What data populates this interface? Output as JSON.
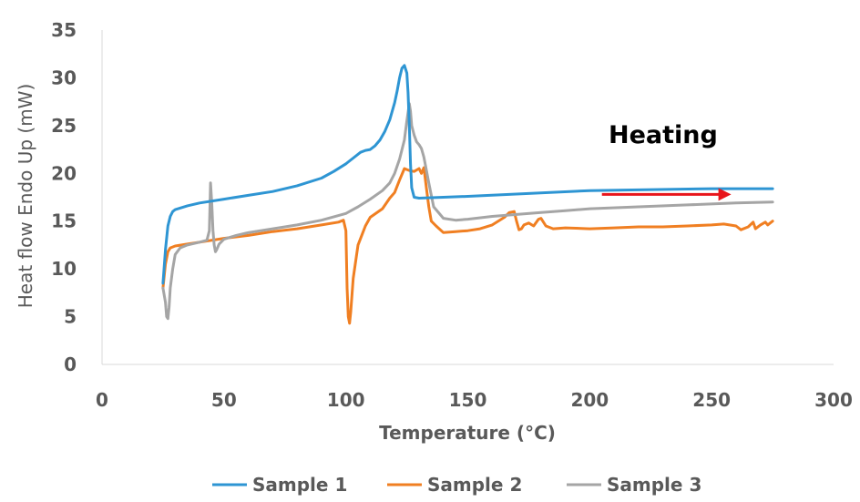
{
  "chart_data": {
    "type": "line",
    "xlabel": "Temperature (°C)",
    "ylabel": "Heat flow Endo Up  (mW)",
    "xlim": [
      0,
      300
    ],
    "ylim": [
      0,
      35
    ],
    "xticks": [
      0,
      50,
      100,
      150,
      200,
      250,
      300
    ],
    "yticks": [
      0,
      5,
      10,
      15,
      20,
      25,
      30,
      35
    ],
    "grid": false,
    "legend_position": "bottom",
    "annotation": {
      "text": "Heating",
      "arrow_from": [
        205,
        17.8
      ],
      "arrow_to": [
        258,
        17.8
      ],
      "arrow_color": "#e8151b"
    },
    "series": [
      {
        "name": "Sample 1",
        "color": "#2e95d3",
        "x": [
          25,
          26,
          27,
          28,
          29,
          30,
          35,
          40,
          50,
          60,
          70,
          80,
          90,
          95,
          100,
          103,
          106,
          108,
          110,
          112,
          114,
          116,
          118,
          120,
          121,
          122,
          123,
          124,
          125,
          125.5,
          126,
          126.5,
          127,
          128,
          130,
          140,
          150,
          200,
          250,
          275
        ],
        "y": [
          8.5,
          12,
          14.5,
          15.5,
          16,
          16.2,
          16.6,
          16.9,
          17.3,
          17.7,
          18.1,
          18.7,
          19.5,
          20.2,
          21.0,
          21.6,
          22.2,
          22.4,
          22.5,
          22.9,
          23.5,
          24.4,
          25.6,
          27.4,
          28.6,
          30.0,
          31.0,
          31.3,
          30.5,
          28.5,
          25.0,
          21.0,
          18.5,
          17.5,
          17.4,
          17.5,
          17.6,
          18.2,
          18.4,
          18.4
        ]
      },
      {
        "name": "Sample 2",
        "color": "#f07f22",
        "x": [
          25,
          26,
          27,
          28,
          30,
          35,
          40,
          50,
          60,
          70,
          80,
          90,
          97,
          99,
          100,
          100.5,
          101,
          101.5,
          102,
          103,
          105,
          108,
          110,
          115,
          118,
          120,
          122,
          124,
          125,
          126,
          128,
          130,
          131,
          132,
          133,
          134,
          135,
          137,
          140,
          145,
          150,
          155,
          160,
          165,
          167,
          169,
          170,
          171,
          172,
          173,
          175,
          177,
          179,
          180,
          182,
          185,
          190,
          200,
          210,
          220,
          230,
          240,
          250,
          255,
          260,
          262,
          265,
          267,
          268,
          270,
          272,
          273,
          275
        ],
        "y": [
          8,
          10.5,
          11.8,
          12.2,
          12.4,
          12.6,
          12.8,
          13.2,
          13.5,
          13.9,
          14.2,
          14.6,
          14.9,
          15.1,
          14.0,
          8.0,
          5.0,
          4.3,
          5.5,
          9.0,
          12.5,
          14.5,
          15.4,
          16.3,
          17.4,
          18.0,
          19.3,
          20.5,
          20.4,
          20.3,
          20.2,
          20.5,
          20.0,
          20.6,
          18.5,
          16.5,
          15.0,
          14.5,
          13.8,
          13.9,
          14.0,
          14.2,
          14.6,
          15.4,
          15.9,
          16.0,
          15.0,
          14.1,
          14.2,
          14.6,
          14.8,
          14.5,
          15.2,
          15.3,
          14.5,
          14.2,
          14.3,
          14.2,
          14.3,
          14.4,
          14.4,
          14.5,
          14.6,
          14.7,
          14.5,
          14.1,
          14.4,
          14.9,
          14.2,
          14.6,
          14.9,
          14.6,
          15.0
        ]
      },
      {
        "name": "Sample 3",
        "color": "#a5a5a5",
        "x": [
          25,
          26,
          26.5,
          27,
          27.5,
          28,
          29,
          30,
          32,
          35,
          40,
          43,
          44,
          44.5,
          45,
          45.5,
          46,
          46.5,
          47,
          48,
          50,
          55,
          60,
          70,
          80,
          90,
          100,
          105,
          110,
          115,
          118,
          120,
          122,
          124,
          125,
          126,
          126.5,
          127,
          128,
          129,
          130,
          131,
          132,
          134,
          136,
          140,
          145,
          150,
          160,
          170,
          180,
          190,
          200,
          220,
          240,
          260,
          275
        ],
        "y": [
          8,
          6.5,
          5,
          4.8,
          6,
          8,
          10,
          11.5,
          12.2,
          12.5,
          12.8,
          13.0,
          14,
          19.0,
          17,
          14,
          12.5,
          11.8,
          12,
          12.6,
          13.1,
          13.5,
          13.8,
          14.2,
          14.6,
          15.1,
          15.8,
          16.5,
          17.3,
          18.2,
          19.0,
          20.0,
          21.5,
          23.5,
          25.5,
          27.3,
          26.5,
          25.0,
          24.0,
          23.3,
          23.0,
          22.6,
          21.7,
          19.0,
          16.5,
          15.3,
          15.1,
          15.2,
          15.5,
          15.7,
          15.9,
          16.1,
          16.3,
          16.5,
          16.7,
          16.9,
          17.0
        ]
      }
    ]
  }
}
